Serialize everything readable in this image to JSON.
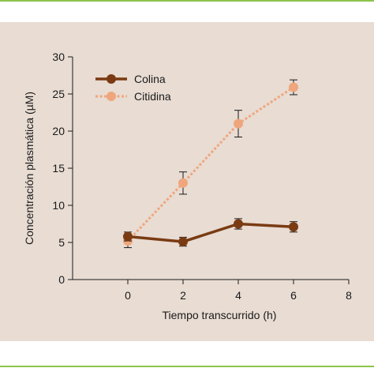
{
  "colors": {
    "rule": "#8cc34a",
    "panel": "#e8dcd3",
    "colina": "#7a3b12",
    "citidina": "#f0a67c"
  },
  "chart_data": {
    "type": "line",
    "xlabel": "Tiempo transcurrido (h)",
    "ylabel": "Concentración plasmática (µM)",
    "xlim": [
      -2,
      8
    ],
    "ylim": [
      0,
      30
    ],
    "xticks": [
      0,
      2,
      4,
      6,
      8
    ],
    "yticks": [
      0,
      5,
      10,
      15,
      20,
      25,
      30
    ],
    "grid": false,
    "legend_position": "top-left",
    "series": [
      {
        "name": "Colina",
        "color": "#7a3b12",
        "style": "solid",
        "x": [
          0,
          2,
          4,
          6
        ],
        "y": [
          5.8,
          5.1,
          7.5,
          7.1
        ],
        "err": [
          0.6,
          0.6,
          0.7,
          0.7
        ]
      },
      {
        "name": "Citidina",
        "color": "#f0a67c",
        "style": "dotted",
        "x": [
          0,
          2,
          4,
          6
        ],
        "y": [
          5.2,
          13.0,
          21.0,
          25.9
        ],
        "err": [
          0.9,
          1.5,
          1.8,
          1.0
        ]
      }
    ]
  }
}
